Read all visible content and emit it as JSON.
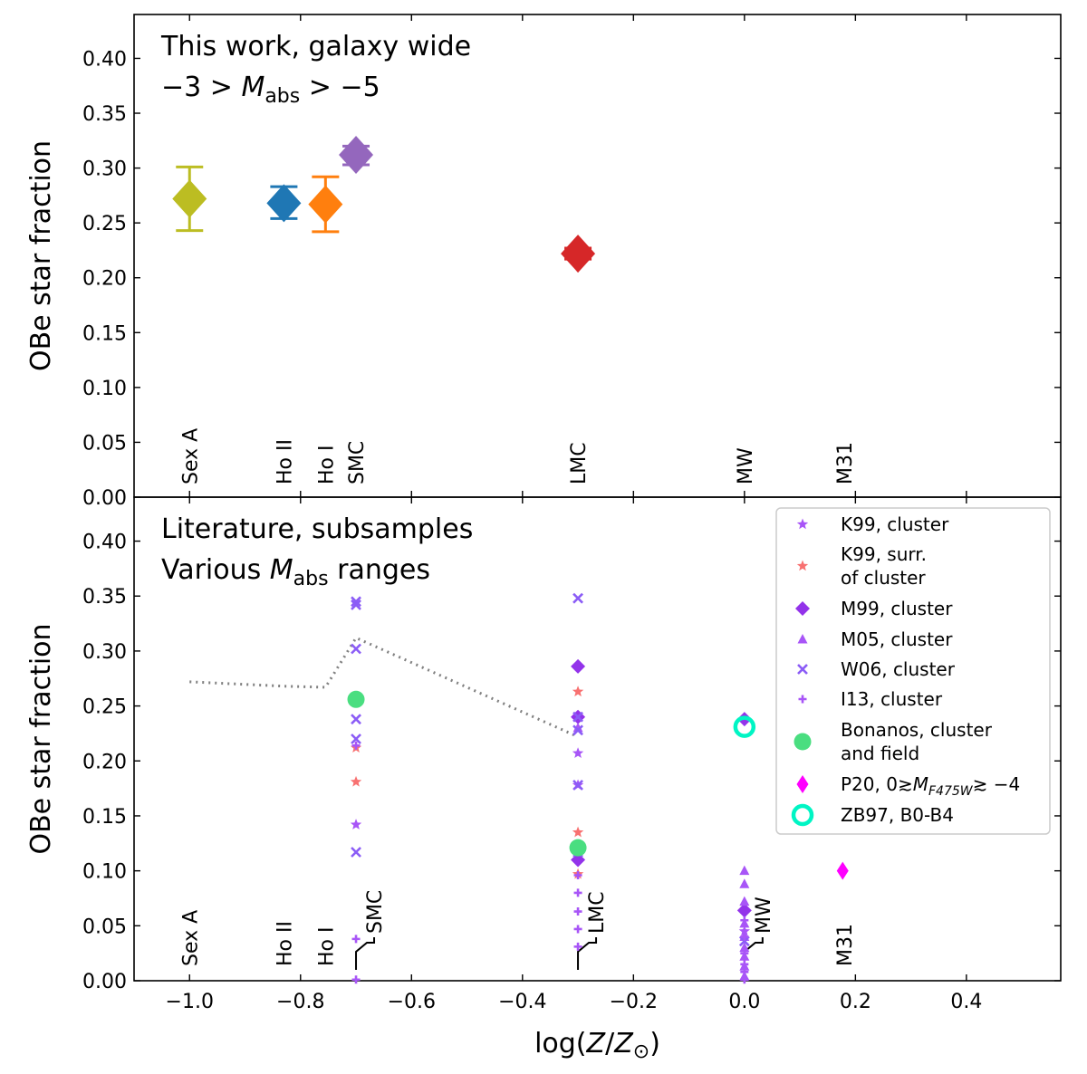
{
  "chart_data": [
    {
      "type": "scatter",
      "panel": "top",
      "annotation": [
        "This work, galaxy wide",
        "−3 > M_abs > −5"
      ],
      "xlabel": "",
      "ylabel": "OBe star fraction",
      "xlim": [
        -1.1,
        0.57
      ],
      "ylim": [
        0.0,
        0.44
      ],
      "xticks": [
        -1.0,
        -0.8,
        -0.6,
        -0.4,
        -0.2,
        0.0,
        0.2,
        0.4
      ],
      "yticks": [
        "0.00",
        "0.05",
        "0.10",
        "0.15",
        "0.20",
        "0.25",
        "0.30",
        "0.35",
        "0.40"
      ],
      "galaxy_labels": [
        {
          "text": "Sex A",
          "x": -1.0
        },
        {
          "text": "Ho II",
          "x": -0.83
        },
        {
          "text": "Ho I",
          "x": -0.755
        },
        {
          "text": "SMC",
          "x": -0.7
        },
        {
          "text": "LMC",
          "x": -0.3
        },
        {
          "text": "MW",
          "x": 0.0
        },
        {
          "text": "M31",
          "x": 0.18
        }
      ],
      "points": [
        {
          "galaxy": "Sex A",
          "x": -1.0,
          "y": 0.272,
          "err_low": 0.243,
          "err_high": 0.301,
          "color": "#bcbd22"
        },
        {
          "galaxy": "Ho II",
          "x": -0.83,
          "y": 0.268,
          "err_low": 0.254,
          "err_high": 0.283,
          "color": "#1f77b4"
        },
        {
          "galaxy": "Ho I",
          "x": -0.755,
          "y": 0.267,
          "err_low": 0.242,
          "err_high": 0.292,
          "color": "#ff7f0e"
        },
        {
          "galaxy": "SMC",
          "x": -0.7,
          "y": 0.312,
          "err_low": 0.303,
          "err_high": 0.32,
          "color": "#9467bd"
        },
        {
          "galaxy": "LMC",
          "x": -0.3,
          "y": 0.222,
          "err_low": 0.217,
          "err_high": 0.227,
          "color": "#d62728"
        }
      ]
    },
    {
      "type": "scatter",
      "panel": "bottom",
      "annotation": [
        "Literature, subsamples",
        "Various M_abs ranges"
      ],
      "xlabel": "log(Z/Z⊙)",
      "ylabel": "OBe star fraction",
      "xlim": [
        -1.1,
        0.57
      ],
      "ylim": [
        0.0,
        0.44
      ],
      "xticks": [
        -1.0,
        -0.8,
        -0.6,
        -0.4,
        -0.2,
        0.0,
        0.2,
        0.4
      ],
      "xtick_labels": [
        "−1.0",
        "−0.8",
        "−0.6",
        "−0.4",
        "−0.2",
        "0.0",
        "0.2",
        "0.4"
      ],
      "yticks": [
        "0.00",
        "0.05",
        "0.10",
        "0.15",
        "0.20",
        "0.25",
        "0.30",
        "0.35",
        "0.40"
      ],
      "galaxy_labels": [
        {
          "text": "Sex A",
          "x": -1.0
        },
        {
          "text": "Ho II",
          "x": -0.83
        },
        {
          "text": "Ho I",
          "x": -0.755
        },
        {
          "text": "SMC",
          "x": -0.7,
          "offset": true
        },
        {
          "text": "LMC",
          "x": -0.3,
          "offset": true
        },
        {
          "text": "MW",
          "x": 0.0,
          "offset": true
        },
        {
          "text": "M31",
          "x": 0.18
        }
      ],
      "dotted_line": {
        "x": [
          -1.0,
          -0.83,
          -0.755,
          -0.7,
          -0.3
        ],
        "y": [
          0.272,
          0.268,
          0.267,
          0.312,
          0.222
        ],
        "color": "#808080"
      },
      "legend": {
        "position": "top-right"
      },
      "series": [
        {
          "name": "K99, cluster",
          "marker": "star",
          "color": "#a855f7",
          "x": [
            -0.7,
            -0.3,
            -0.3,
            0.0
          ],
          "y": [
            0.142,
            0.178,
            0.207,
            0.045
          ]
        },
        {
          "name": "K99, surr. of cluster",
          "marker": "star",
          "color": "#f87171",
          "x": [
            -0.7,
            -0.7,
            -0.3,
            -0.3,
            -0.3
          ],
          "y": [
            0.212,
            0.181,
            0.263,
            0.135,
            0.097
          ]
        },
        {
          "name": "M99, cluster",
          "marker": "diamond",
          "color": "#9333ea",
          "x": [
            -0.3,
            -0.3,
            -0.3,
            0.0,
            0.0
          ],
          "y": [
            0.286,
            0.24,
            0.11,
            0.238,
            0.064
          ]
        },
        {
          "name": "M05, cluster",
          "marker": "triangle",
          "color": "#a855f7",
          "x": [
            -0.3,
            0.0,
            0.0,
            0.0,
            0.0,
            0.0,
            0.0,
            0.0,
            0.0,
            0.0
          ],
          "y": [
            0.23,
            0.1,
            0.088,
            0.072,
            0.052,
            0.04,
            0.03,
            0.022,
            0.013,
            0.004
          ]
        },
        {
          "name": "W06, cluster",
          "marker": "x",
          "color": "#8b5cf6",
          "x": [
            -0.7,
            -0.7,
            -0.7,
            -0.7,
            -0.7,
            -0.7,
            -0.3,
            -0.3,
            -0.3,
            -0.3,
            -0.3,
            0.0
          ],
          "y": [
            0.345,
            0.342,
            0.302,
            0.238,
            0.22,
            0.117,
            0.348,
            0.24,
            0.228,
            0.178,
            0.117,
            0.036
          ]
        },
        {
          "name": "I13, cluster",
          "marker": "plus",
          "color": "#a855f7",
          "x": [
            -0.7,
            -0.7,
            -0.7,
            -0.3,
            -0.3,
            -0.3,
            -0.3,
            -0.3,
            0.0,
            0.0,
            0.0,
            0.0,
            0.0,
            0.0
          ],
          "y": [
            0.038,
            0.001,
            0.214,
            0.096,
            0.08,
            0.063,
            0.047,
            0.031,
            0.055,
            0.04,
            0.025,
            0.015,
            0.008,
            0.001
          ]
        },
        {
          "name": "Bonanos, cluster and field",
          "marker": "circle",
          "color": "#4ade80",
          "x": [
            -0.7,
            -0.3
          ],
          "y": [
            0.256,
            0.121
          ]
        },
        {
          "name": "P20, 0≳M_F475W≳−4",
          "marker": "thin-diamond",
          "color": "#ff00ff",
          "x": [
            0.177
          ],
          "y": [
            0.1
          ]
        },
        {
          "name": "ZB97, B0-B4",
          "marker": "ring",
          "color": "#00f5c4",
          "x": [
            0.0
          ],
          "y": [
            0.231
          ]
        }
      ]
    }
  ]
}
